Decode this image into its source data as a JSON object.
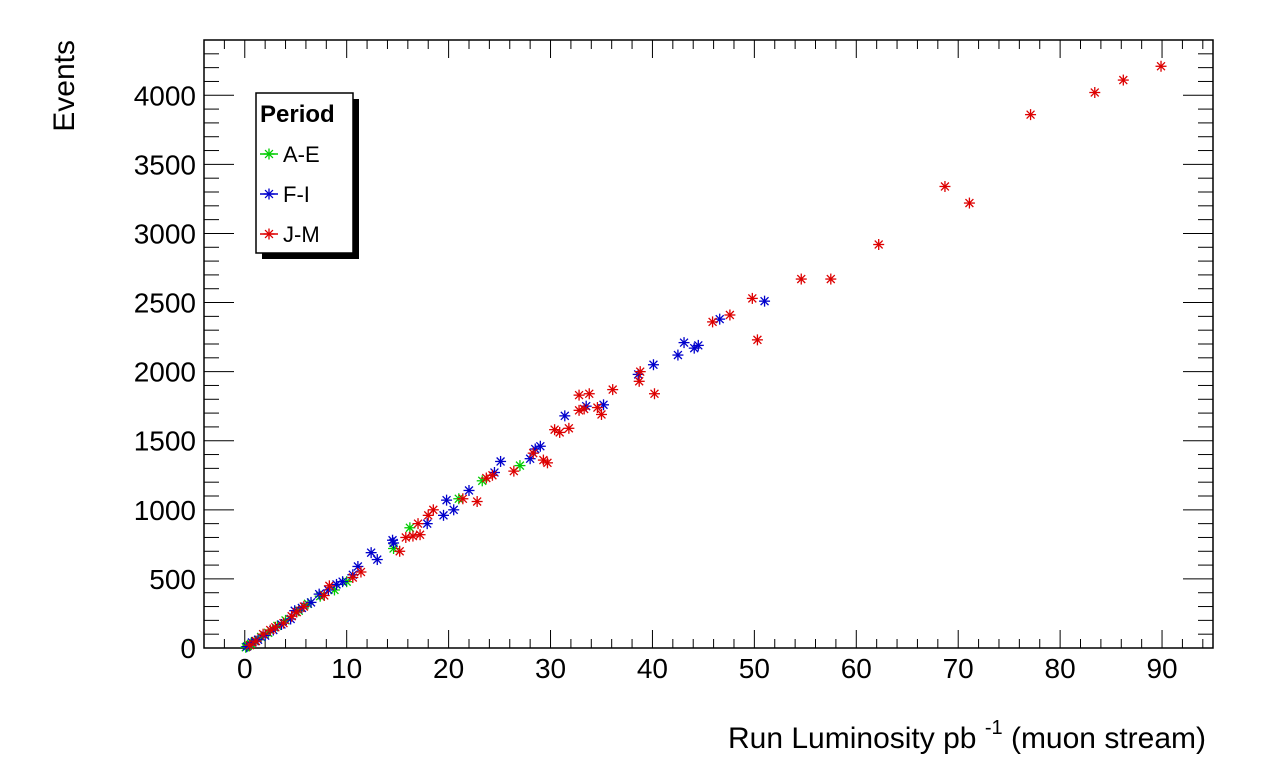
{
  "chart_data": {
    "type": "scatter",
    "title": "",
    "xlabel_main": "Run Luminosity pb",
    "xlabel_sup": "-1",
    "xlabel_tail": " (muon stream)",
    "ylabel": "Events",
    "xlim": [
      -4,
      95
    ],
    "ylim": [
      0,
      4400
    ],
    "xticks": [
      "0",
      "10",
      "20",
      "30",
      "40",
      "50",
      "60",
      "70",
      "80",
      "90"
    ],
    "yticks": [
      "0",
      "500",
      "1000",
      "1500",
      "2000",
      "2500",
      "3000",
      "3500",
      "4000"
    ],
    "legend_title": "Period",
    "legend_position": "top-left",
    "grid": false,
    "series": [
      {
        "name": "A-E",
        "color": "#00cc00",
        "points": [
          [
            0.1,
            5
          ],
          [
            0.3,
            15
          ],
          [
            0.6,
            30
          ],
          [
            1.0,
            50
          ],
          [
            1.6,
            80
          ],
          [
            2.3,
            110
          ],
          [
            3.2,
            160
          ],
          [
            4.0,
            200
          ],
          [
            5.3,
            270
          ],
          [
            6.2,
            320
          ],
          [
            7.4,
            375
          ],
          [
            8.8,
            420
          ],
          [
            10.0,
            480
          ],
          [
            14.6,
            720
          ],
          [
            16.2,
            870
          ],
          [
            21.0,
            1080
          ],
          [
            23.3,
            1210
          ],
          [
            27.0,
            1320
          ]
        ]
      },
      {
        "name": "F-I",
        "color": "#0000cc",
        "points": [
          [
            0.2,
            10
          ],
          [
            0.7,
            40
          ],
          [
            1.3,
            60
          ],
          [
            2.0,
            90
          ],
          [
            2.8,
            130
          ],
          [
            3.6,
            170
          ],
          [
            4.5,
            210
          ],
          [
            4.9,
            270
          ],
          [
            5.6,
            290
          ],
          [
            6.5,
            330
          ],
          [
            7.3,
            390
          ],
          [
            8.2,
            420
          ],
          [
            9.0,
            460
          ],
          [
            9.6,
            480
          ],
          [
            10.6,
            530
          ],
          [
            11.1,
            590
          ],
          [
            12.4,
            690
          ],
          [
            13.0,
            640
          ],
          [
            14.5,
            780
          ],
          [
            14.6,
            760
          ],
          [
            17.9,
            900
          ],
          [
            19.5,
            960
          ],
          [
            19.8,
            1070
          ],
          [
            20.5,
            1000
          ],
          [
            22.0,
            1140
          ],
          [
            24.5,
            1270
          ],
          [
            25.1,
            1350
          ],
          [
            28.0,
            1370
          ],
          [
            28.5,
            1440
          ],
          [
            29.0,
            1460
          ],
          [
            31.4,
            1680
          ],
          [
            33.5,
            1750
          ],
          [
            35.2,
            1760
          ],
          [
            38.6,
            1980
          ],
          [
            40.1,
            2050
          ],
          [
            42.5,
            2120
          ],
          [
            43.1,
            2210
          ],
          [
            44.1,
            2170
          ],
          [
            44.5,
            2190
          ],
          [
            46.6,
            2380
          ],
          [
            51.0,
            2510
          ]
        ]
      },
      {
        "name": "J-M",
        "color": "#dd0000",
        "points": [
          [
            0.5,
            20
          ],
          [
            1.1,
            50
          ],
          [
            1.8,
            100
          ],
          [
            2.5,
            130
          ],
          [
            3.0,
            150
          ],
          [
            3.8,
            180
          ],
          [
            4.6,
            230
          ],
          [
            5.1,
            260
          ],
          [
            5.8,
            300
          ],
          [
            7.8,
            380
          ],
          [
            8.3,
            450
          ],
          [
            10.6,
            510
          ],
          [
            11.4,
            550
          ],
          [
            15.2,
            700
          ],
          [
            15.8,
            800
          ],
          [
            16.5,
            810
          ],
          [
            17.0,
            900
          ],
          [
            17.2,
            820
          ],
          [
            18.0,
            960
          ],
          [
            18.5,
            1000
          ],
          [
            21.4,
            1080
          ],
          [
            22.8,
            1060
          ],
          [
            23.7,
            1230
          ],
          [
            24.3,
            1250
          ],
          [
            26.4,
            1280
          ],
          [
            28.3,
            1410
          ],
          [
            29.3,
            1360
          ],
          [
            29.7,
            1340
          ],
          [
            30.4,
            1580
          ],
          [
            30.9,
            1560
          ],
          [
            31.8,
            1590
          ],
          [
            32.8,
            1830
          ],
          [
            32.8,
            1720
          ],
          [
            33.3,
            1730
          ],
          [
            33.8,
            1840
          ],
          [
            34.6,
            1740
          ],
          [
            35.0,
            1690
          ],
          [
            36.1,
            1870
          ],
          [
            38.7,
            1930
          ],
          [
            38.8,
            2000
          ],
          [
            40.2,
            1840
          ],
          [
            45.9,
            2360
          ],
          [
            47.6,
            2410
          ],
          [
            49.8,
            2530
          ],
          [
            50.3,
            2230
          ],
          [
            54.6,
            2670
          ],
          [
            57.5,
            2670
          ],
          [
            62.2,
            2920
          ],
          [
            68.7,
            3340
          ],
          [
            71.1,
            3220
          ],
          [
            77.1,
            3860
          ],
          [
            83.4,
            4020
          ],
          [
            86.2,
            4110
          ],
          [
            89.9,
            4210
          ]
        ]
      }
    ]
  }
}
